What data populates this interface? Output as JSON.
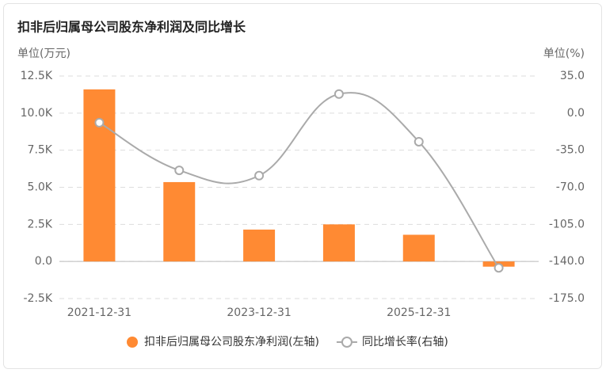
{
  "chart_data": {
    "type": "bar",
    "title": "扣非后归属母公司股东净利润及同比增长",
    "y_label": "单位(万元)",
    "y2_label": "单位(%)",
    "categories": [
      "2021-12-31",
      null,
      "2023-12-31",
      null,
      "2025-12-31",
      null
    ],
    "series": [
      {
        "name": "扣非后归属母公司股东净利润(左轴)",
        "type": "bar",
        "color": "#ff8a33",
        "values": [
          11600,
          5350,
          2150,
          2500,
          1800,
          -350
        ]
      },
      {
        "name": "同比增长率(右轴)",
        "type": "line",
        "axis": "y2",
        "color": "#aaaaaa",
        "values": [
          -9,
          -54,
          -59,
          18,
          -27,
          -146
        ]
      }
    ],
    "ylim": [
      -2500,
      12500
    ],
    "yticks": [
      {
        "value": -2500,
        "label": "-2.5K"
      },
      {
        "value": 0,
        "label": "0.0"
      },
      {
        "value": 2500,
        "label": "2.5K"
      },
      {
        "value": 5000,
        "label": "5.0K"
      },
      {
        "value": 7500,
        "label": "7.5K"
      },
      {
        "value": 10000,
        "label": "10.0K"
      },
      {
        "value": 12500,
        "label": "12.5K"
      }
    ],
    "y2lim": [
      -175,
      35
    ],
    "y2ticks": [
      {
        "value": -175,
        "label": "-175.0"
      },
      {
        "value": -140,
        "label": "-140.0"
      },
      {
        "value": -105,
        "label": "-105.0"
      },
      {
        "value": -70,
        "label": "-70.0"
      },
      {
        "value": -35,
        "label": "-35.0"
      },
      {
        "value": 0,
        "label": "0.0"
      },
      {
        "value": 35,
        "label": "35.0"
      }
    ],
    "grid": true
  }
}
